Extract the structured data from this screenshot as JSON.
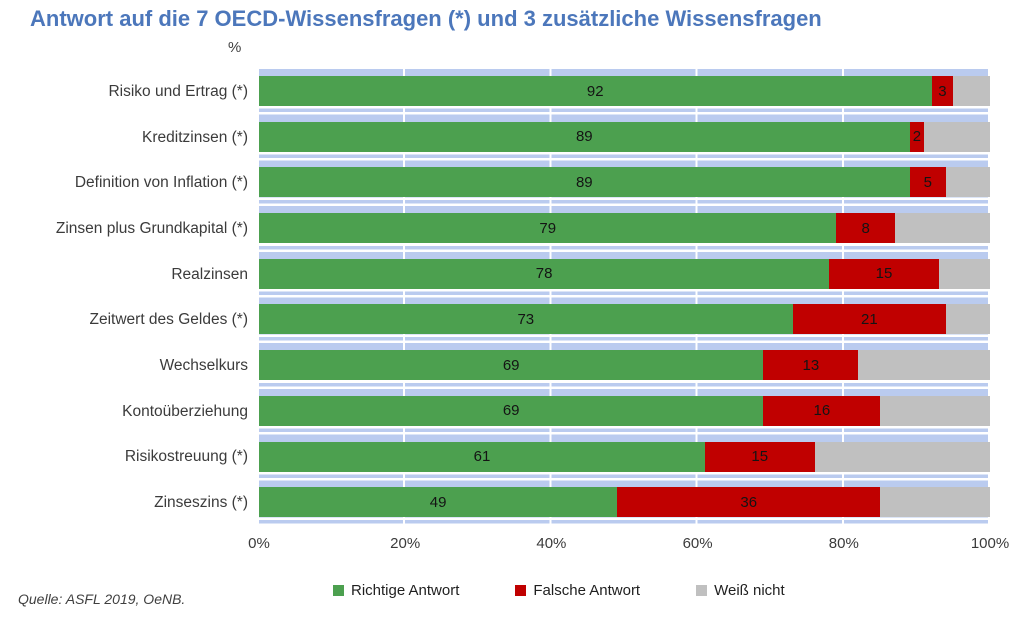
{
  "title": "Antwort auf die 7 OECD-Wissensfragen (*) und 3 zusätzliche Wissensfragen",
  "unit_label": "%",
  "source": "Quelle: ASFL 2019, OeNB.",
  "colors": {
    "title_blue": "#4C77BB",
    "correct_green": "#4CA04F",
    "wrong_red": "#C00000",
    "dontknow_gray": "#C0C0C0",
    "stripe_blue": "#BACBEF"
  },
  "chart_data": {
    "type": "bar",
    "orientation": "horizontal",
    "stacked": true,
    "title": "Antwort auf die 7 OECD-Wissensfragen (*) und 3 zusätzliche Wissensfragen",
    "unit": "%",
    "categories": [
      "Risiko und Ertrag (*)",
      "Kreditzinsen (*)",
      "Definition von Inflation (*)",
      "Zinsen plus Grundkapital (*)",
      "Realzinsen",
      "Zeitwert des Geldes (*)",
      "Wechselkurs",
      "Kontoüberziehung",
      "Risikostreuung (*)",
      "Zinseszins (*)"
    ],
    "series": [
      {
        "name": "Richtige Antwort",
        "color": "#4CA04F",
        "show_labels": true,
        "values": [
          92,
          89,
          89,
          79,
          78,
          73,
          69,
          69,
          61,
          49
        ]
      },
      {
        "name": "Falsche Antwort",
        "color": "#C00000",
        "show_labels": true,
        "values": [
          3,
          2,
          5,
          8,
          15,
          21,
          13,
          16,
          15,
          36
        ]
      },
      {
        "name": "Weiß nicht",
        "color": "#C0C0C0",
        "show_labels": false,
        "values": [
          5,
          9,
          6,
          13,
          7,
          6,
          18,
          15,
          24,
          15
        ]
      }
    ],
    "x_axis": {
      "min": 0,
      "max": 100,
      "tick_labels": [
        "0%",
        "20%",
        "40%",
        "60%",
        "80%",
        "100%"
      ],
      "gridlines": true
    },
    "legend_position": "bottom",
    "source": "Quelle: ASFL 2019, OeNB."
  }
}
